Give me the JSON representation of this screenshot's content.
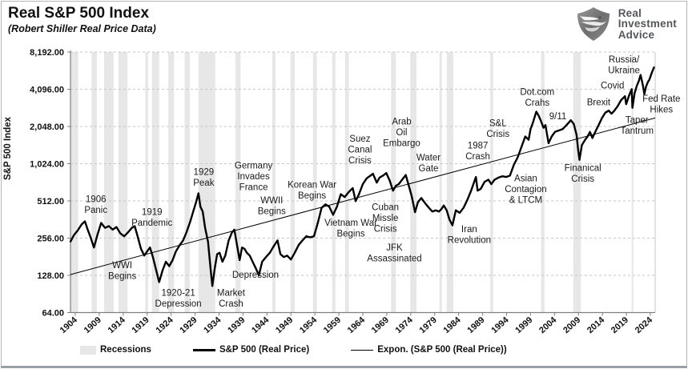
{
  "title": "Real S&P 500 Index",
  "subtitle": "(Robert Shiller Real Price Data)",
  "logo": {
    "line1": "Real",
    "line2": "Investment",
    "line3": "Advice"
  },
  "y_axis": {
    "title": "S&P 500 Index",
    "tick_labels": [
      "8,192.00",
      "4,096.00",
      "2,048.00",
      "1,024.00",
      "512.00",
      "256.00",
      "128.00",
      "64.00"
    ],
    "tick_values": [
      8192,
      4096,
      2048,
      1024,
      512,
      256,
      128,
      64
    ]
  },
  "x_axis": {
    "ticks": [
      1904,
      1909,
      1914,
      1919,
      1924,
      1929,
      1934,
      1939,
      1944,
      1949,
      1954,
      1959,
      1964,
      1969,
      1974,
      1979,
      1984,
      1989,
      1994,
      1999,
      2004,
      2009,
      2014,
      2019,
      2024
    ]
  },
  "legend": {
    "recessions": "Recessions",
    "series": "S&P 500 (Real Price)",
    "trend": "Expon. (S&P 500 (Real Price))"
  },
  "colors": {
    "series": "#000000",
    "trend": "#000000",
    "recession": "#e7e7e7",
    "gridline": "#c6c6c6",
    "axis": "#7f7f7f",
    "text": "#111111",
    "logo_text": "#54575b"
  },
  "chart_data": {
    "type": "line",
    "title": "Real S&P 500 Index",
    "xlabel": "",
    "ylabel": "S&P 500 Index",
    "x_domain": [
      1903,
      2025
    ],
    "y_domain": [
      64,
      8192
    ],
    "y_scale": "log2",
    "grid": "horizontal-dashed",
    "legend_position": "bottom",
    "series": [
      {
        "name": "S&P 500 (Real Price)",
        "points": [
          [
            1903,
            240
          ],
          [
            1903.7,
            270
          ],
          [
            1904.5,
            295
          ],
          [
            1905.3,
            330
          ],
          [
            1906.0,
            350
          ],
          [
            1906.6,
            300
          ],
          [
            1907.2,
            260
          ],
          [
            1907.9,
            215
          ],
          [
            1908.6,
            270
          ],
          [
            1909.4,
            340
          ],
          [
            1910.2,
            310
          ],
          [
            1911.0,
            320
          ],
          [
            1911.8,
            300
          ],
          [
            1912.6,
            315
          ],
          [
            1913.4,
            280
          ],
          [
            1914.2,
            265
          ],
          [
            1915.0,
            285
          ],
          [
            1915.8,
            310
          ],
          [
            1916.4,
            320
          ],
          [
            1917.0,
            265
          ],
          [
            1917.7,
            210
          ],
          [
            1918.4,
            185
          ],
          [
            1919.0,
            200
          ],
          [
            1919.6,
            215
          ],
          [
            1920.2,
            180
          ],
          [
            1920.8,
            145
          ],
          [
            1921.5,
            113
          ],
          [
            1922.2,
            140
          ],
          [
            1922.9,
            165
          ],
          [
            1923.6,
            152
          ],
          [
            1924.3,
            170
          ],
          [
            1925.0,
            200
          ],
          [
            1925.8,
            225
          ],
          [
            1926.5,
            245
          ],
          [
            1927.2,
            285
          ],
          [
            1928.0,
            350
          ],
          [
            1928.6,
            420
          ],
          [
            1929.2,
            500
          ],
          [
            1929.7,
            590
          ],
          [
            1930.1,
            460
          ],
          [
            1930.6,
            420
          ],
          [
            1931.1,
            310
          ],
          [
            1931.7,
            240
          ],
          [
            1932.2,
            150
          ],
          [
            1932.6,
            105
          ],
          [
            1933.1,
            145
          ],
          [
            1933.6,
            190
          ],
          [
            1934.1,
            195
          ],
          [
            1934.7,
            165
          ],
          [
            1935.3,
            185
          ],
          [
            1936.0,
            245
          ],
          [
            1936.7,
            285
          ],
          [
            1937.2,
            300
          ],
          [
            1937.8,
            220
          ],
          [
            1938.3,
            170
          ],
          [
            1938.8,
            215
          ],
          [
            1939.3,
            210
          ],
          [
            1939.8,
            195
          ],
          [
            1940.4,
            185
          ],
          [
            1941.0,
            165
          ],
          [
            1941.7,
            145
          ],
          [
            1942.3,
            128
          ],
          [
            1943.0,
            165
          ],
          [
            1943.8,
            180
          ],
          [
            1944.6,
            195
          ],
          [
            1945.4,
            220
          ],
          [
            1946.2,
            245
          ],
          [
            1946.8,
            190
          ],
          [
            1947.5,
            180
          ],
          [
            1948.2,
            185
          ],
          [
            1949.0,
            172
          ],
          [
            1949.8,
            195
          ],
          [
            1950.6,
            225
          ],
          [
            1951.4,
            245
          ],
          [
            1952.2,
            265
          ],
          [
            1953.0,
            260
          ],
          [
            1953.8,
            265
          ],
          [
            1954.6,
            340
          ],
          [
            1955.4,
            450
          ],
          [
            1956.2,
            480
          ],
          [
            1957.0,
            460
          ],
          [
            1957.8,
            395
          ],
          [
            1958.6,
            460
          ],
          [
            1959.4,
            580
          ],
          [
            1960.2,
            550
          ],
          [
            1961.0,
            600
          ],
          [
            1961.9,
            650
          ],
          [
            1962.5,
            510
          ],
          [
            1963.2,
            580
          ],
          [
            1964.0,
            700
          ],
          [
            1964.8,
            780
          ],
          [
            1965.6,
            820
          ],
          [
            1966.1,
            850
          ],
          [
            1966.9,
            720
          ],
          [
            1967.5,
            790
          ],
          [
            1968.2,
            820
          ],
          [
            1968.9,
            860
          ],
          [
            1969.6,
            750
          ],
          [
            1970.3,
            620
          ],
          [
            1970.9,
            680
          ],
          [
            1971.5,
            700
          ],
          [
            1972.2,
            760
          ],
          [
            1972.95,
            830
          ],
          [
            1973.6,
            680
          ],
          [
            1974.2,
            560
          ],
          [
            1974.9,
            415
          ],
          [
            1975.5,
            500
          ],
          [
            1976.2,
            540
          ],
          [
            1977.0,
            490
          ],
          [
            1977.8,
            450
          ],
          [
            1978.5,
            420
          ],
          [
            1979.2,
            430
          ],
          [
            1979.9,
            420
          ],
          [
            1980.4,
            440
          ],
          [
            1980.9,
            470
          ],
          [
            1981.5,
            430
          ],
          [
            1982.1,
            360
          ],
          [
            1982.7,
            325
          ],
          [
            1983.4,
            430
          ],
          [
            1984.2,
            410
          ],
          [
            1985.0,
            450
          ],
          [
            1985.8,
            520
          ],
          [
            1986.6,
            620
          ],
          [
            1987.6,
            800
          ],
          [
            1987.95,
            620
          ],
          [
            1988.6,
            640
          ],
          [
            1989.4,
            730
          ],
          [
            1990.2,
            760
          ],
          [
            1990.8,
            700
          ],
          [
            1991.5,
            760
          ],
          [
            1992.3,
            790
          ],
          [
            1993.1,
            810
          ],
          [
            1993.9,
            800
          ],
          [
            1994.7,
            820
          ],
          [
            1995.5,
            1000
          ],
          [
            1996.3,
            1150
          ],
          [
            1997.1,
            1400
          ],
          [
            1997.9,
            1700
          ],
          [
            1998.6,
            1600
          ],
          [
            1999.0,
            1950
          ],
          [
            1999.5,
            2200
          ],
          [
            2000.2,
            2700
          ],
          [
            2000.7,
            2500
          ],
          [
            2001.2,
            2250
          ],
          [
            2001.7,
            2000
          ],
          [
            2002.1,
            2100
          ],
          [
            2002.75,
            1500
          ],
          [
            2003.4,
            1700
          ],
          [
            2004.1,
            1850
          ],
          [
            2004.9,
            1900
          ],
          [
            2005.7,
            1950
          ],
          [
            2006.5,
            2100
          ],
          [
            2007.4,
            2300
          ],
          [
            2008.0,
            2150
          ],
          [
            2008.6,
            1750
          ],
          [
            2008.9,
            1350
          ],
          [
            2009.2,
            1100
          ],
          [
            2009.7,
            1450
          ],
          [
            2010.4,
            1600
          ],
          [
            2010.9,
            1700
          ],
          [
            2011.4,
            1850
          ],
          [
            2011.9,
            1650
          ],
          [
            2012.5,
            1850
          ],
          [
            2013.2,
            2100
          ],
          [
            2013.9,
            2400
          ],
          [
            2014.6,
            2650
          ],
          [
            2015.3,
            2750
          ],
          [
            2015.9,
            2600
          ],
          [
            2016.5,
            2750
          ],
          [
            2017.2,
            3000
          ],
          [
            2017.9,
            3350
          ],
          [
            2018.7,
            3600
          ],
          [
            2018.95,
            3100
          ],
          [
            2019.5,
            3600
          ],
          [
            2020.1,
            4100
          ],
          [
            2020.25,
            2900
          ],
          [
            2020.7,
            3800
          ],
          [
            2021.2,
            4400
          ],
          [
            2021.6,
            4800
          ],
          [
            2021.95,
            5350
          ],
          [
            2022.4,
            4500
          ],
          [
            2022.75,
            3750
          ],
          [
            2023.1,
            4300
          ],
          [
            2023.5,
            4700
          ],
          [
            2023.8,
            4900
          ],
          [
            2024.1,
            5300
          ],
          [
            2024.4,
            5700
          ],
          [
            2024.75,
            6150
          ]
        ]
      },
      {
        "name": "Expon. (S&P 500 (Real Price))",
        "points": [
          [
            1903,
            130
          ],
          [
            2025,
            2400
          ]
        ]
      }
    ],
    "recessions": [
      [
        1903.0,
        1904.6
      ],
      [
        1907.4,
        1908.5
      ],
      [
        1910.0,
        1912.0
      ],
      [
        1913.0,
        1914.9
      ],
      [
        1918.6,
        1919.2
      ],
      [
        1920.0,
        1921.5
      ],
      [
        1923.4,
        1924.6
      ],
      [
        1926.8,
        1927.9
      ],
      [
        1929.7,
        1933.2
      ],
      [
        1937.4,
        1938.5
      ],
      [
        1945.1,
        1945.8
      ],
      [
        1948.9,
        1949.8
      ],
      [
        1953.6,
        1954.4
      ],
      [
        1957.6,
        1958.3
      ],
      [
        1960.3,
        1961.1
      ],
      [
        1969.9,
        1970.9
      ],
      [
        1973.9,
        1975.2
      ],
      [
        1980.0,
        1980.5
      ],
      [
        1981.5,
        1982.9
      ],
      [
        1990.6,
        1991.2
      ],
      [
        2001.2,
        2001.9
      ],
      [
        2007.9,
        2009.5
      ],
      [
        2020.1,
        2020.4
      ]
    ],
    "annotations": [
      {
        "id": "panic-1906",
        "lines": [
          "1906",
          "Panic"
        ],
        "year": 1908.3,
        "value": 480
      },
      {
        "id": "pandemic-1919",
        "lines": [
          "1919",
          "Pandemic"
        ],
        "year": 1920.0,
        "value": 380
      },
      {
        "id": "wwi-begins",
        "lines": [
          "WWI",
          "Begins"
        ],
        "year": 1913.8,
        "value": 140
      },
      {
        "id": "depression-1920-21",
        "lines": [
          "1920-21",
          "Depression"
        ],
        "year": 1925.5,
        "value": 84
      },
      {
        "id": "peak-1929",
        "lines": [
          "1929",
          "Peak"
        ],
        "year": 1930.8,
        "value": 800
      },
      {
        "id": "market-crash",
        "lines": [
          "Market",
          "Crash"
        ],
        "year": 1936.5,
        "value": 84
      },
      {
        "id": "depression",
        "lines": [
          "Depression"
        ],
        "year": 1941.6,
        "value": 130
      },
      {
        "id": "germany-invades-france",
        "lines": [
          "Germany",
          "Invades",
          "France"
        ],
        "year": 1941.2,
        "value": 810
      },
      {
        "id": "wwii-begins",
        "lines": [
          "WWII",
          "Begins"
        ],
        "year": 1945.0,
        "value": 470
      },
      {
        "id": "korean-war-begins",
        "lines": [
          "Korean War",
          "Begins"
        ],
        "year": 1953.4,
        "value": 630
      },
      {
        "id": "vietnam-war-begins",
        "lines": [
          "Vietnam War",
          "Begins"
        ],
        "year": 1961.5,
        "value": 310
      },
      {
        "id": "suez-canal-crisis",
        "lines": [
          "Suez",
          "Canal",
          "Crisis"
        ],
        "year": 1963.4,
        "value": 1340
      },
      {
        "id": "cuban-missle-crisis",
        "lines": [
          "Cuban",
          "Missle",
          "Crisis"
        ],
        "year": 1968.7,
        "value": 375
      },
      {
        "id": "jfk-assassinated",
        "lines": [
          "JFK",
          "Assassinated"
        ],
        "year": 1970.6,
        "value": 195
      },
      {
        "id": "arab-oil-embargo",
        "lines": [
          "Arab",
          "Oil",
          "Embargo"
        ],
        "year": 1972.1,
        "value": 1840
      },
      {
        "id": "water-gate",
        "lines": [
          "Water",
          "Gate"
        ],
        "year": 1977.7,
        "value": 1040
      },
      {
        "id": "iran-revolution",
        "lines": [
          "Iran",
          "Revolution"
        ],
        "year": 1986.2,
        "value": 275
      },
      {
        "id": "crash-1987",
        "lines": [
          "1987",
          "Crash"
        ],
        "year": 1988.0,
        "value": 1300
      },
      {
        "id": "sl-crisis",
        "lines": [
          "S&L",
          "Crisis"
        ],
        "year": 1992.2,
        "value": 1980
      },
      {
        "id": "asian-contagion-ltcm",
        "lines": [
          "Asian",
          "Contagion",
          "& LTCM"
        ],
        "year": 1998.0,
        "value": 640
      },
      {
        "id": "dotcom-crahs",
        "lines": [
          "Dot.com",
          "Crahs"
        ],
        "year": 2000.4,
        "value": 3530
      },
      {
        "id": "nine-eleven",
        "lines": [
          "9/11"
        ],
        "year": 2004.7,
        "value": 2480
      },
      {
        "id": "finanical-crisis",
        "lines": [
          "Finanical",
          "Crisis"
        ],
        "year": 2009.9,
        "value": 860
      },
      {
        "id": "brexit",
        "lines": [
          "Brexit"
        ],
        "year": 2013.2,
        "value": 3220
      },
      {
        "id": "covid",
        "lines": [
          "Covid"
        ],
        "year": 2016.1,
        "value": 4400
      },
      {
        "id": "russia-ukraine",
        "lines": [
          "Russia/",
          "Ukraine"
        ],
        "year": 2018.5,
        "value": 6500
      },
      {
        "id": "taper-tantrum",
        "lines": [
          "Taper",
          "Tantrum"
        ],
        "year": 2021.2,
        "value": 2100
      },
      {
        "id": "fed-rate-hikes",
        "lines": [
          "Fed Rate",
          "Hikes"
        ],
        "year": 2026.3,
        "value": 3130
      }
    ]
  }
}
